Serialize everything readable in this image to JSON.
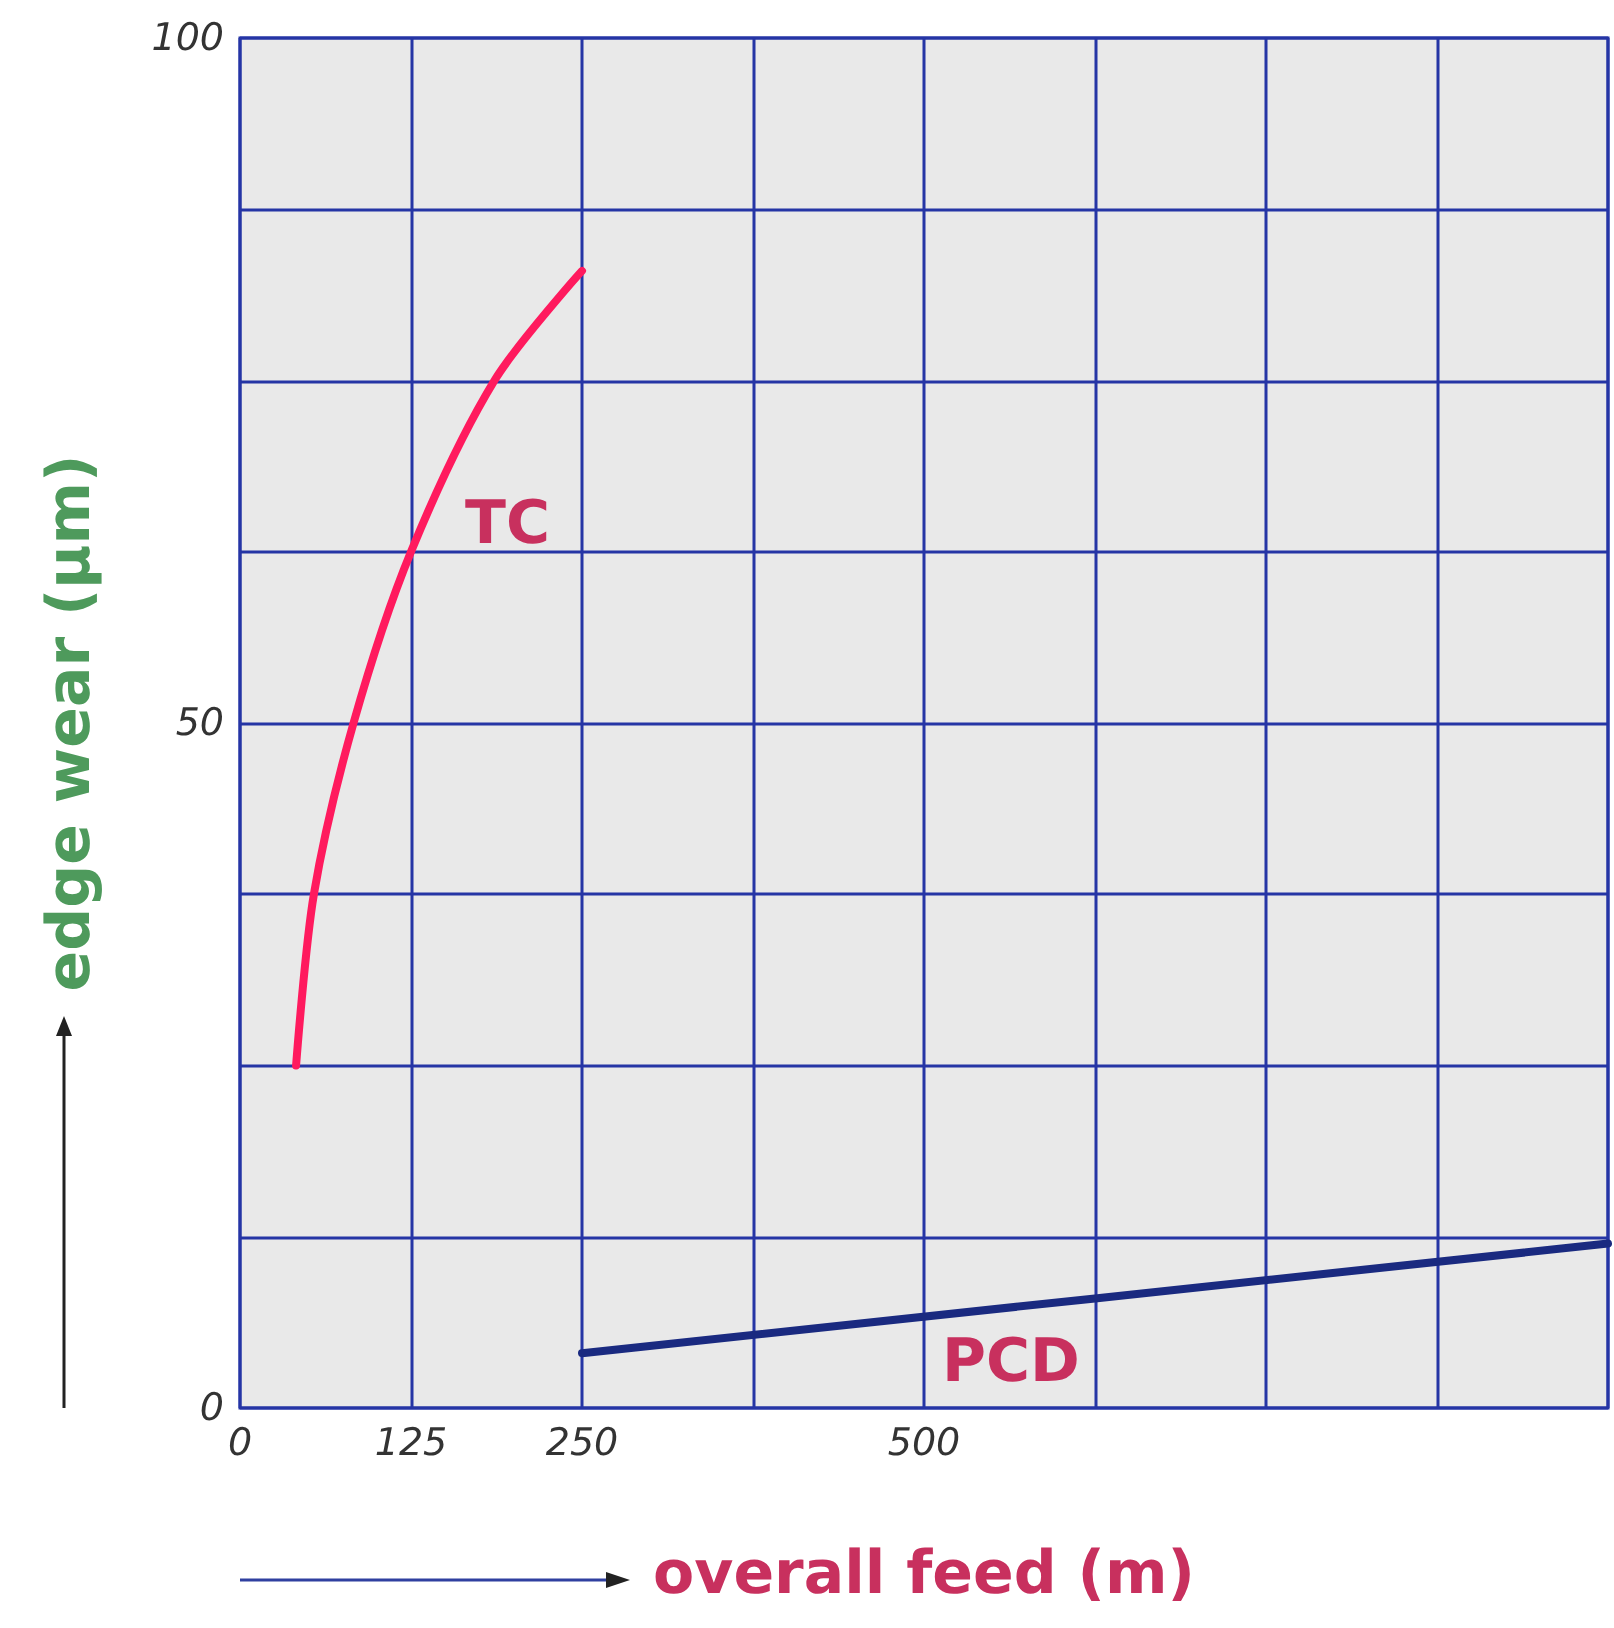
{
  "chart_data": {
    "type": "line",
    "xlabel": "overall feed (m)",
    "ylabel": "edge wear (µm)",
    "xlim": [
      0,
      1000
    ],
    "xticks": [
      0,
      125,
      250,
      {
        "value": 375,
        "label": null
      },
      500,
      {
        "value": 625,
        "label": null
      },
      {
        "value": 750,
        "label": null
      },
      {
        "value": 875,
        "label": null
      },
      {
        "value": 1000,
        "label": null
      }
    ],
    "ylim": [
      0,
      100
    ],
    "yticks": [
      0,
      {
        "value": 12.5,
        "label": null
      },
      {
        "value": 25,
        "label": null
      },
      {
        "value": 37.5,
        "label": null
      },
      50,
      {
        "value": 62.5,
        "label": null
      },
      {
        "value": 75,
        "label": null
      },
      {
        "value": 87.5,
        "label": null
      },
      100
    ],
    "grid": true,
    "marker": "none",
    "line_style": "solid",
    "series": [
      {
        "name": "TC",
        "color": "#ff1a5e",
        "x": [
          41,
          54,
          83,
          125,
          186,
          250
        ],
        "values": [
          25,
          37.5,
          50,
          62.5,
          75,
          83
        ]
      },
      {
        "name": "PCD",
        "color": "#1a2a80",
        "x": [
          250,
          625,
          1000
        ],
        "values": [
          4,
          8,
          12
        ]
      }
    ]
  }
}
